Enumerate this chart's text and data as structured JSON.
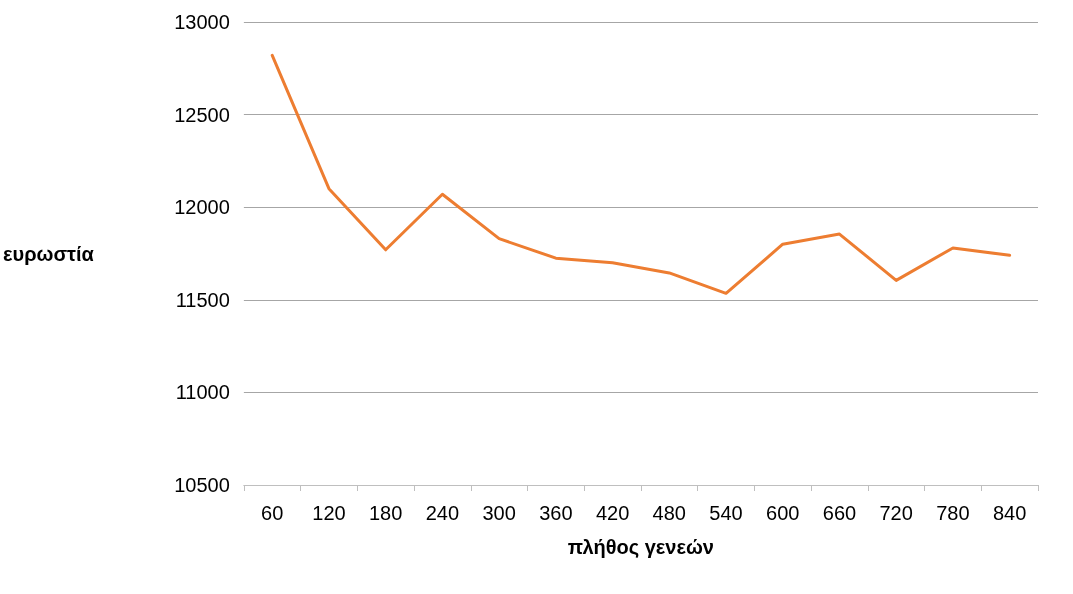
{
  "chart_data": {
    "type": "line",
    "xlabel": "πλήθος γενεών",
    "ylabel": "ευρωστία",
    "categories": [
      "60",
      "120",
      "180",
      "240",
      "300",
      "360",
      "420",
      "480",
      "540",
      "600",
      "660",
      "720",
      "780",
      "840"
    ],
    "series": [
      {
        "color": "#ed7d31",
        "values": [
          12820,
          12100,
          11770,
          12070,
          11830,
          11725,
          11700,
          11645,
          11535,
          11800,
          11855,
          11605,
          11780,
          11740
        ]
      }
    ],
    "ylim": [
      10500,
      13000
    ],
    "yticks": [
      10500,
      11000,
      11500,
      12000,
      12500,
      13000
    ],
    "grid": "y",
    "marker": "none",
    "line_style": "solid"
  }
}
